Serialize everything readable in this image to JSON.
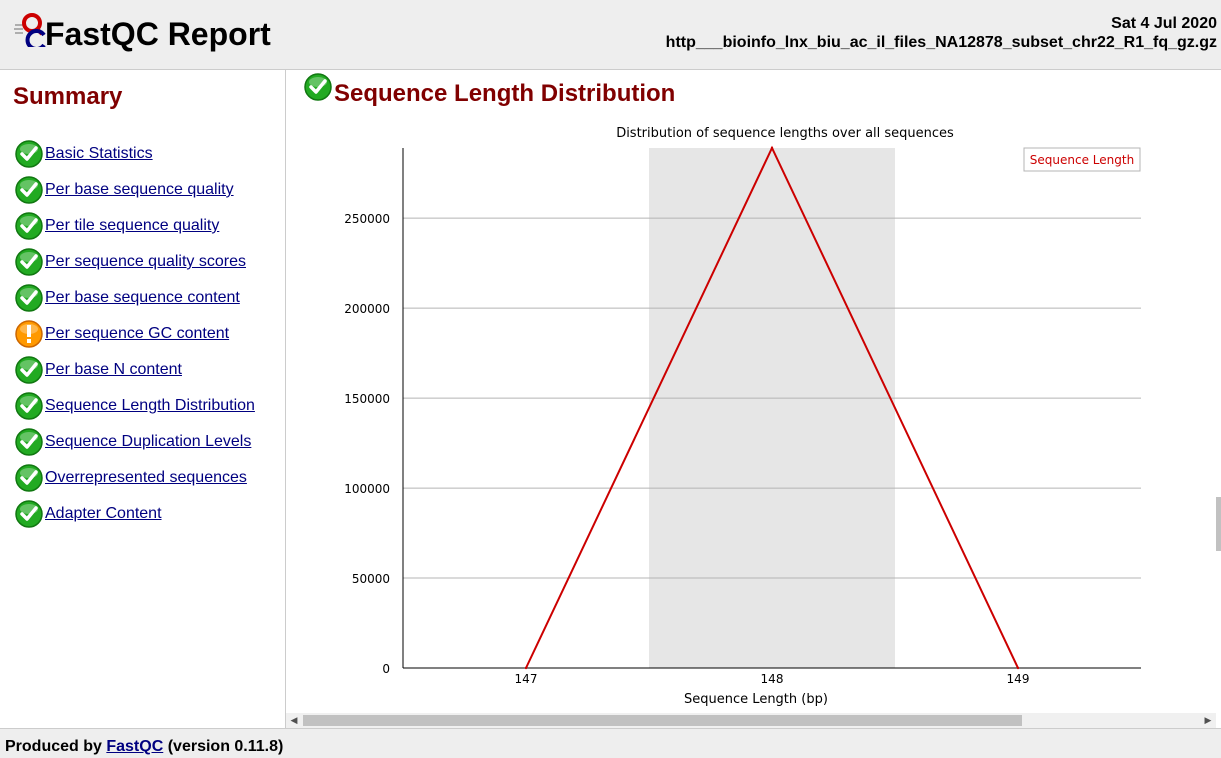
{
  "header": {
    "title": "FastQC Report",
    "date": "Sat 4 Jul 2020",
    "filename": "http___bioinfo_lnx_biu_ac_il_files_NA12878_subset_chr22_R1_fq_gz.gz"
  },
  "sidebar": {
    "title": "Summary",
    "items": [
      {
        "label": "Basic Statistics",
        "status": "pass"
      },
      {
        "label": "Per base sequence quality",
        "status": "pass"
      },
      {
        "label": "Per tile sequence quality",
        "status": "pass"
      },
      {
        "label": "Per sequence quality scores",
        "status": "pass"
      },
      {
        "label": "Per base sequence content",
        "status": "pass"
      },
      {
        "label": "Per sequence GC content",
        "status": "warn"
      },
      {
        "label": "Per base N content",
        "status": "pass"
      },
      {
        "label": "Sequence Length Distribution",
        "status": "pass"
      },
      {
        "label": "Sequence Duplication Levels",
        "status": "pass"
      },
      {
        "label": "Overrepresented sequences",
        "status": "pass"
      },
      {
        "label": "Adapter Content",
        "status": "pass"
      }
    ]
  },
  "section": {
    "title": "Sequence Length Distribution",
    "status": "pass"
  },
  "chart_data": {
    "type": "line",
    "title": "Distribution of sequence lengths over all sequences",
    "xlabel": "Sequence Length (bp)",
    "ylabel": "",
    "categories": [
      "147",
      "148",
      "149"
    ],
    "series": [
      {
        "name": "Sequence Length",
        "values": [
          0,
          289000,
          0
        ],
        "color": "#cc0000"
      }
    ],
    "y_ticks": [
      0,
      50000,
      100000,
      150000,
      200000,
      250000
    ],
    "ylim": [
      0,
      289000
    ],
    "highlight_category": "148",
    "grid": true,
    "legend": "top-right"
  },
  "footer": {
    "prefix": "Produced by",
    "link": "FastQC",
    "version": "(version 0.11.8)"
  },
  "colors": {
    "pass": "#22aa22",
    "warn": "#ff9900",
    "heading": "#800000",
    "link": "#000080"
  }
}
